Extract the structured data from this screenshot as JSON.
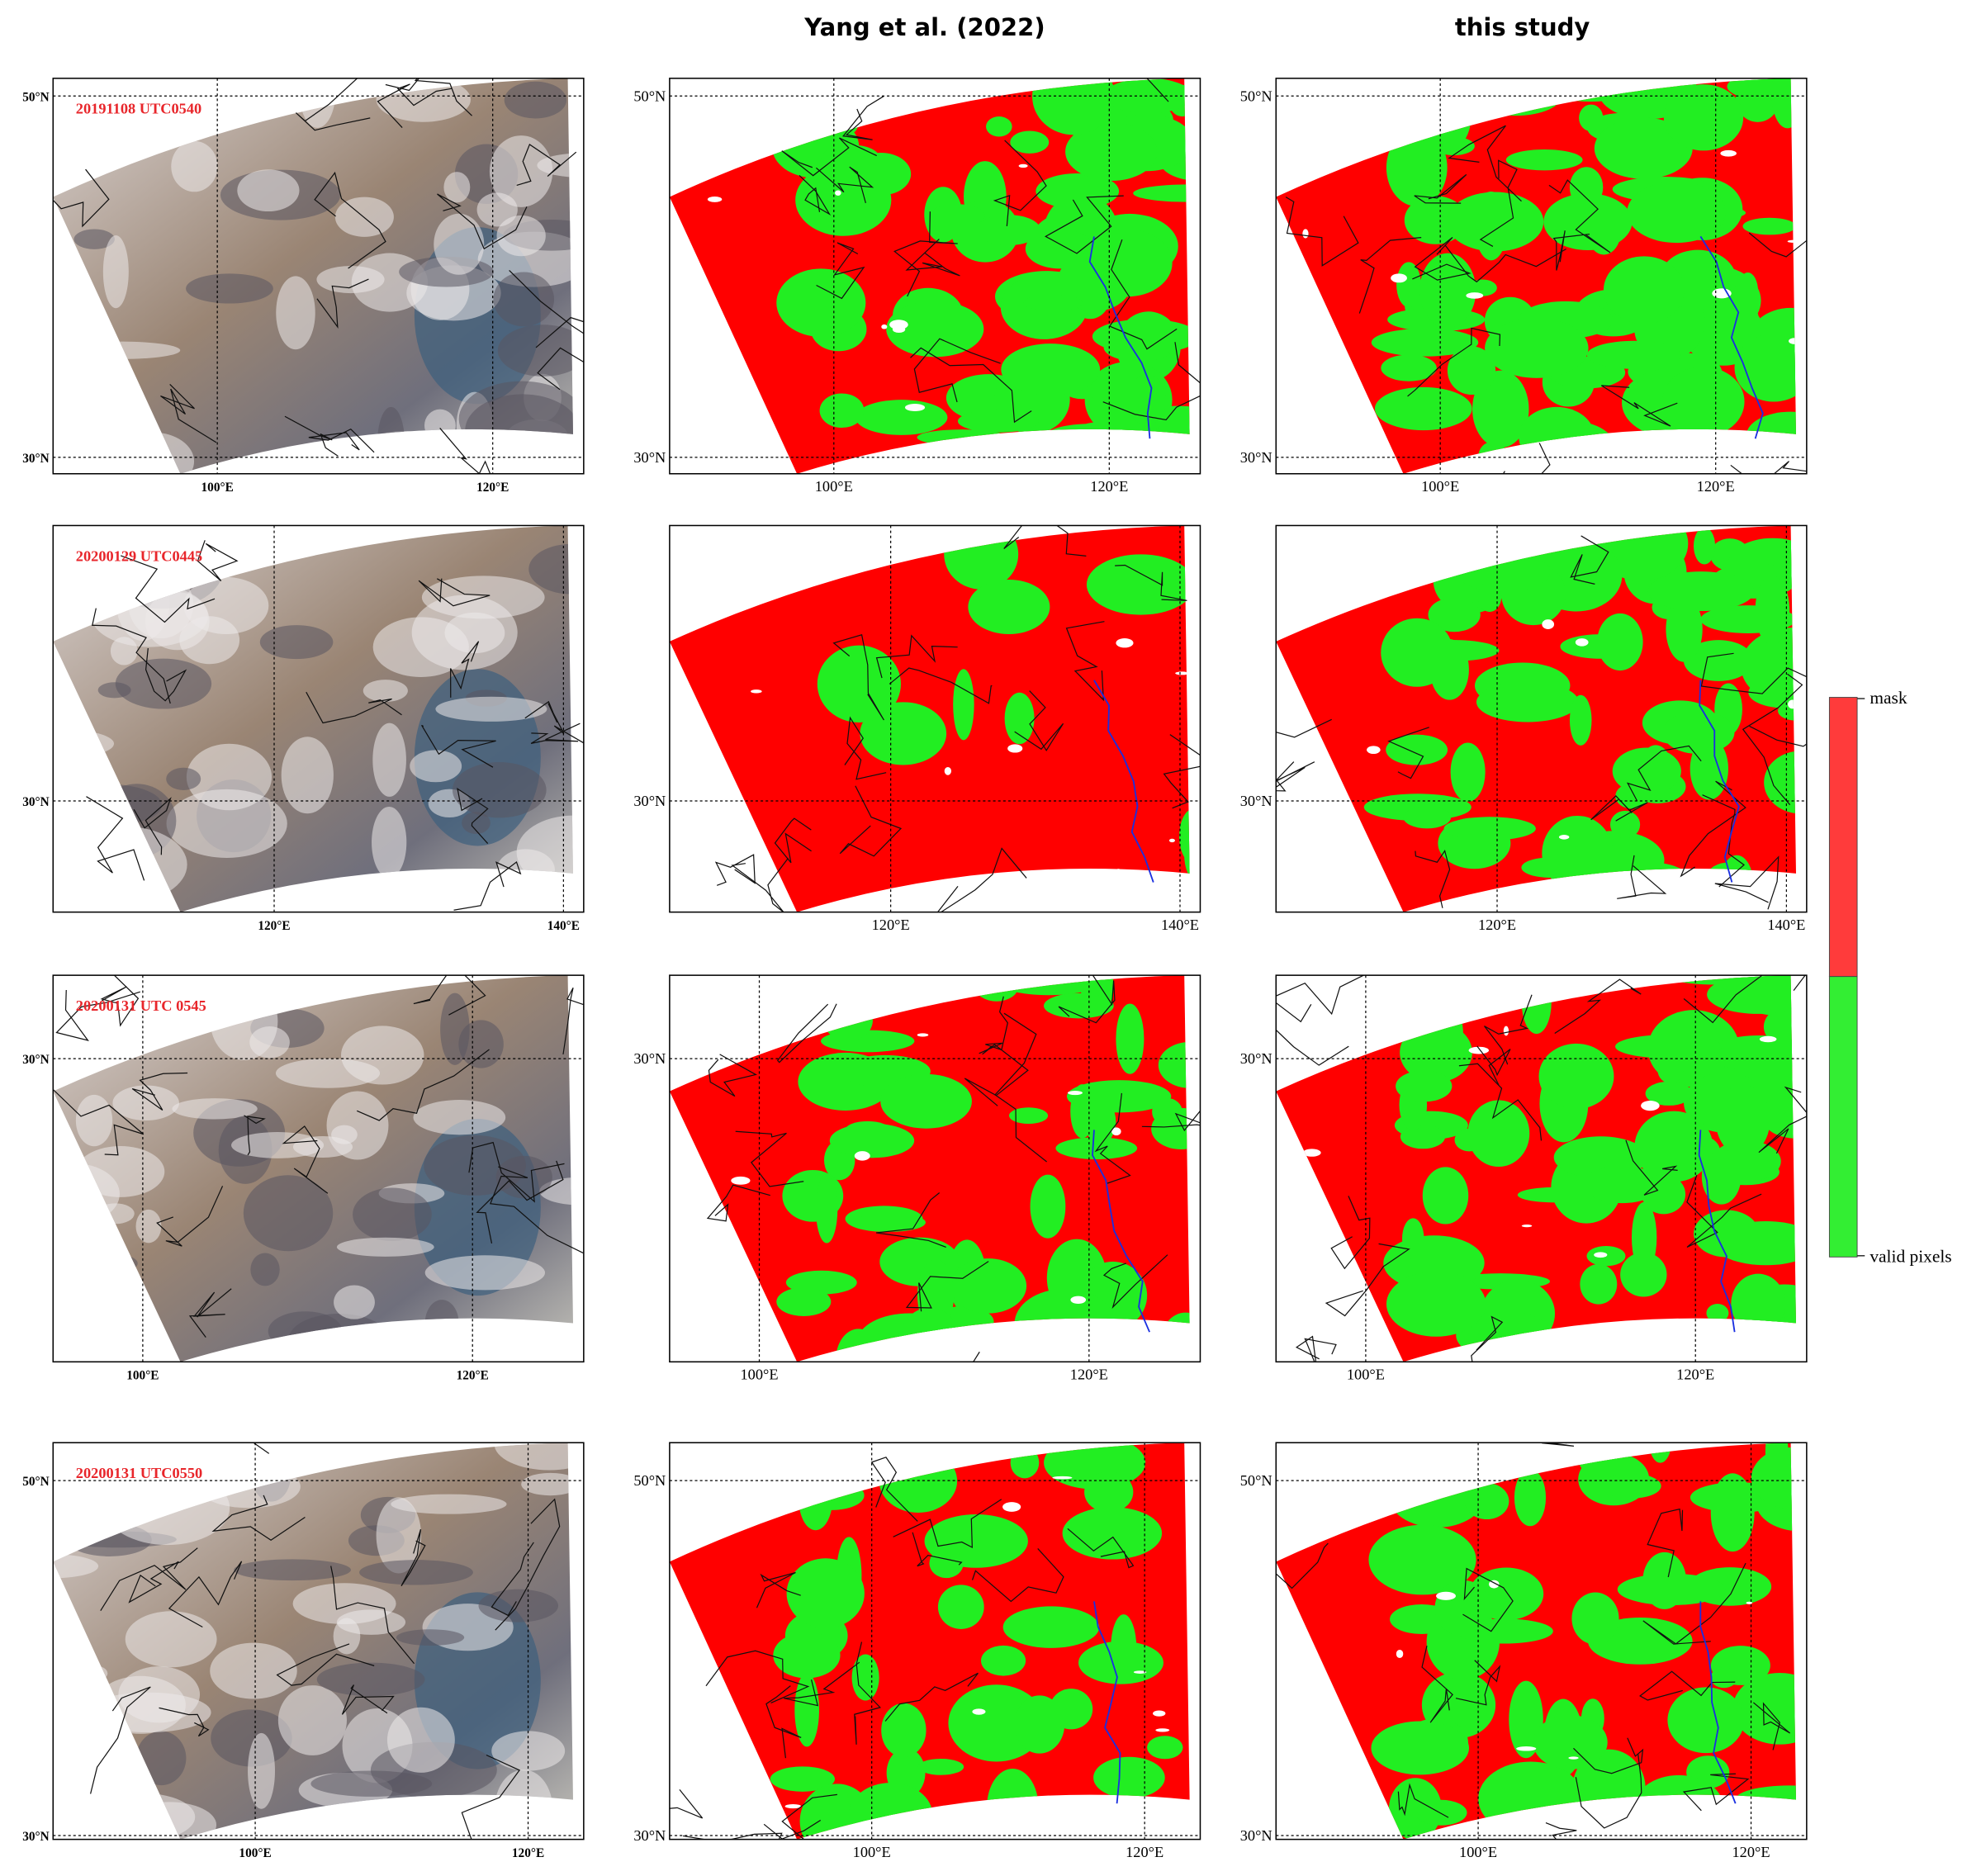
{
  "column_headers": [
    "Yang et al. (2022)",
    "this study"
  ],
  "rows": [
    {
      "date": "20191108 UTC0540",
      "lat_labels": [
        "50°N",
        "30°N"
      ],
      "lon_labels": [
        "100°E",
        "120°E"
      ]
    },
    {
      "date": "20200129 UTC0445",
      "lat_labels": [
        "30°N"
      ],
      "lon_labels": [
        "120°E",
        "140°E"
      ]
    },
    {
      "date": "20200131 UTC 0545",
      "lat_labels": [
        "30°N"
      ],
      "lon_labels": [
        "100°E",
        "120°E"
      ]
    },
    {
      "date": "20200131 UTC0550",
      "lat_labels": [
        "50°N",
        "30°N"
      ],
      "lon_labels": [
        "100°E",
        "120°E"
      ]
    }
  ],
  "colorbar": {
    "labels": [
      "mask",
      "valid pixels"
    ]
  }
}
